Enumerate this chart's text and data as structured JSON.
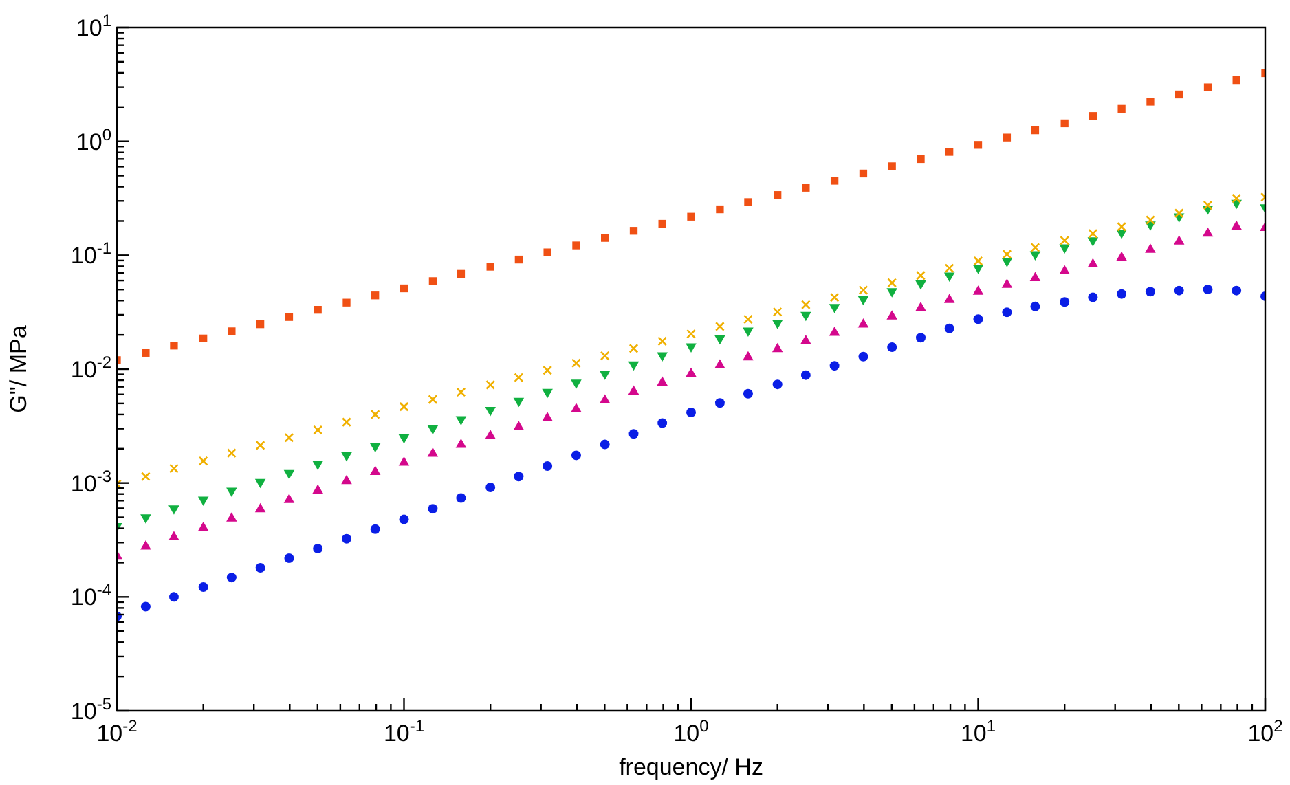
{
  "chart_data": {
    "type": "scatter",
    "xlabel": "frequency/ Hz",
    "ylabel": "G\"/ MPa",
    "log": "xy",
    "grid": false,
    "legend": false,
    "xlim": [
      0.01,
      100
    ],
    "ylim": [
      1e-05,
      10
    ],
    "xticks": [
      {
        "value": 0.01,
        "label": "10$^{-2}$"
      },
      {
        "value": 0.02,
        "label": null
      },
      {
        "value": 0.03,
        "label": null
      },
      {
        "value": 0.04,
        "label": null
      },
      {
        "value": 0.05,
        "label": null
      },
      {
        "value": 0.06,
        "label": null
      },
      {
        "value": 0.07,
        "label": null
      },
      {
        "value": 0.08,
        "label": null
      },
      {
        "value": 0.09,
        "label": null
      },
      {
        "value": 0.1,
        "label": "10$^{-1}$"
      },
      {
        "value": 0.2,
        "label": null
      },
      {
        "value": 0.3,
        "label": null
      },
      {
        "value": 0.4,
        "label": null
      },
      {
        "value": 0.5,
        "label": null
      },
      {
        "value": 0.6,
        "label": null
      },
      {
        "value": 0.7,
        "label": null
      },
      {
        "value": 0.8,
        "label": null
      },
      {
        "value": 0.9,
        "label": null
      },
      {
        "value": 1,
        "label": "10$^{0}$"
      },
      {
        "value": 2,
        "label": null
      },
      {
        "value": 3,
        "label": null
      },
      {
        "value": 4,
        "label": null
      },
      {
        "value": 5,
        "label": null
      },
      {
        "value": 6,
        "label": null
      },
      {
        "value": 7,
        "label": null
      },
      {
        "value": 8,
        "label": null
      },
      {
        "value": 9,
        "label": null
      },
      {
        "value": 10,
        "label": "10$^{1}$"
      },
      {
        "value": 20,
        "label": null
      },
      {
        "value": 30,
        "label": null
      },
      {
        "value": 40,
        "label": null
      },
      {
        "value": 50,
        "label": null
      },
      {
        "value": 60,
        "label": null
      },
      {
        "value": 70,
        "label": null
      },
      {
        "value": 80,
        "label": null
      },
      {
        "value": 90,
        "label": null
      },
      {
        "value": 100,
        "label": "10$^{2}$"
      }
    ],
    "yticks": [
      {
        "value": 1e-05,
        "label": "10$^{-5}$"
      },
      {
        "value": 2e-05,
        "label": null
      },
      {
        "value": 3e-05,
        "label": null
      },
      {
        "value": 4e-05,
        "label": null
      },
      {
        "value": 5e-05,
        "label": null
      },
      {
        "value": 6e-05,
        "label": null
      },
      {
        "value": 7e-05,
        "label": null
      },
      {
        "value": 8e-05,
        "label": null
      },
      {
        "value": 9e-05,
        "label": null
      },
      {
        "value": 0.0001,
        "label": "10$^{-4}$"
      },
      {
        "value": 0.0002,
        "label": null
      },
      {
        "value": 0.0003,
        "label": null
      },
      {
        "value": 0.0004,
        "label": null
      },
      {
        "value": 0.0005,
        "label": null
      },
      {
        "value": 0.0006,
        "label": null
      },
      {
        "value": 0.0007,
        "label": null
      },
      {
        "value": 0.0008,
        "label": null
      },
      {
        "value": 0.0009,
        "label": null
      },
      {
        "value": 0.001,
        "label": "10$^{-3}$"
      },
      {
        "value": 0.002,
        "label": null
      },
      {
        "value": 0.003,
        "label": null
      },
      {
        "value": 0.004,
        "label": null
      },
      {
        "value": 0.005,
        "label": null
      },
      {
        "value": 0.006,
        "label": null
      },
      {
        "value": 0.007,
        "label": null
      },
      {
        "value": 0.008,
        "label": null
      },
      {
        "value": 0.009,
        "label": null
      },
      {
        "value": 0.01,
        "label": "10$^{-2}$"
      },
      {
        "value": 0.02,
        "label": null
      },
      {
        "value": 0.03,
        "label": null
      },
      {
        "value": 0.04,
        "label": null
      },
      {
        "value": 0.05,
        "label": null
      },
      {
        "value": 0.06,
        "label": null
      },
      {
        "value": 0.07,
        "label": null
      },
      {
        "value": 0.08,
        "label": null
      },
      {
        "value": 0.09,
        "label": null
      },
      {
        "value": 0.1,
        "label": "10$^{-1}$"
      },
      {
        "value": 0.2,
        "label": null
      },
      {
        "value": 0.3,
        "label": null
      },
      {
        "value": 0.4,
        "label": null
      },
      {
        "value": 0.5,
        "label": null
      },
      {
        "value": 0.6,
        "label": null
      },
      {
        "value": 0.7,
        "label": null
      },
      {
        "value": 0.8,
        "label": null
      },
      {
        "value": 0.9,
        "label": null
      },
      {
        "value": 1,
        "label": "10$^{0}$"
      },
      {
        "value": 2,
        "label": null
      },
      {
        "value": 3,
        "label": null
      },
      {
        "value": 4,
        "label": null
      },
      {
        "value": 5,
        "label": null
      },
      {
        "value": 6,
        "label": null
      },
      {
        "value": 7,
        "label": null
      },
      {
        "value": 8,
        "label": null
      },
      {
        "value": 9,
        "label": null
      },
      {
        "value": 10,
        "label": "10$^{1}$"
      }
    ],
    "x": [
      0.01,
      0.0126,
      0.0158,
      0.02,
      0.0251,
      0.0316,
      0.0398,
      0.0501,
      0.0631,
      0.0794,
      0.1,
      0.126,
      0.158,
      0.2,
      0.251,
      0.316,
      0.398,
      0.501,
      0.631,
      0.794,
      1,
      1.26,
      1.58,
      2,
      2.51,
      3.16,
      3.98,
      5.01,
      6.31,
      7.94,
      10,
      12.6,
      15.8,
      20,
      25.1,
      31.6,
      39.8,
      50.1,
      63.1,
      79.4,
      100
    ],
    "series": [
      {
        "color": "#f05014",
        "marker": "square",
        "values": [
          0.012,
          0.0139,
          0.0161,
          0.0186,
          0.0215,
          0.0248,
          0.0287,
          0.0332,
          0.0384,
          0.0444,
          0.0512,
          0.0593,
          0.0687,
          0.0793,
          0.0917,
          0.106,
          0.122,
          0.142,
          0.164,
          0.189,
          0.218,
          0.253,
          0.293,
          0.338,
          0.391,
          0.451,
          0.522,
          0.604,
          0.699,
          0.808,
          0.931,
          1.08,
          1.25,
          1.44,
          1.67,
          1.93,
          2.23,
          2.58,
          2.98,
          3.45,
          3.97
        ]
      },
      {
        "color": "#f0b000",
        "marker": "cross",
        "values": [
          0.000977,
          0.00114,
          0.00134,
          0.00156,
          0.00183,
          0.00214,
          0.0025,
          0.00292,
          0.00342,
          0.004,
          0.00468,
          0.00542,
          0.00628,
          0.00728,
          0.00843,
          0.00977,
          0.0113,
          0.0131,
          0.0152,
          0.0176,
          0.0204,
          0.0237,
          0.0274,
          0.0318,
          0.0368,
          0.0427,
          0.0494,
          0.0573,
          0.0664,
          0.0769,
          0.0891,
          0.102,
          0.117,
          0.135,
          0.155,
          0.178,
          0.204,
          0.234,
          0.275,
          0.316,
          0.324
        ]
      },
      {
        "color": "#10b040",
        "marker": "triangle_down",
        "values": [
          0.000417,
          0.000499,
          0.000597,
          0.000714,
          0.000855,
          0.00102,
          0.00122,
          0.00147,
          0.00175,
          0.0021,
          0.00251,
          0.00302,
          0.00363,
          0.00437,
          0.00525,
          0.00631,
          0.00759,
          0.00912,
          0.011,
          0.0132,
          0.0158,
          0.0186,
          0.0218,
          0.0255,
          0.0299,
          0.0351,
          0.0411,
          0.0482,
          0.0565,
          0.0662,
          0.0776,
          0.0891,
          0.102,
          0.117,
          0.135,
          0.158,
          0.186,
          0.219,
          0.257,
          0.288,
          0.263
        ]
      },
      {
        "color": "#d4088c",
        "marker": "triangle",
        "values": [
          0.000229,
          0.000277,
          0.000334,
          0.000404,
          0.000488,
          0.000589,
          0.000711,
          0.000859,
          0.00104,
          0.00125,
          0.00151,
          0.00181,
          0.00217,
          0.00259,
          0.0031,
          0.00372,
          0.00445,
          0.00532,
          0.00637,
          0.00762,
          0.00912,
          0.0108,
          0.0127,
          0.015,
          0.0177,
          0.0209,
          0.0247,
          0.0291,
          0.0344,
          0.0406,
          0.0479,
          0.055,
          0.0631,
          0.0724,
          0.0832,
          0.0955,
          0.112,
          0.132,
          0.155,
          0.178,
          0.174
        ]
      },
      {
        "color": "#0a1ee6",
        "marker": "circle",
        "values": [
          6.76e-05,
          8.22e-05,
          0.0001,
          0.000122,
          0.000148,
          0.00018,
          0.000219,
          0.000266,
          0.000324,
          0.000394,
          0.000479,
          0.000594,
          0.000738,
          0.000916,
          0.00114,
          0.00141,
          0.00175,
          0.00218,
          0.0027,
          0.00336,
          0.00417,
          0.00504,
          0.00608,
          0.00735,
          0.00887,
          0.0107,
          0.0129,
          0.0156,
          0.0189,
          0.0228,
          0.0275,
          0.0316,
          0.0355,
          0.0389,
          0.0427,
          0.0457,
          0.0479,
          0.049,
          0.0501,
          0.049,
          0.0437
        ]
      }
    ]
  }
}
